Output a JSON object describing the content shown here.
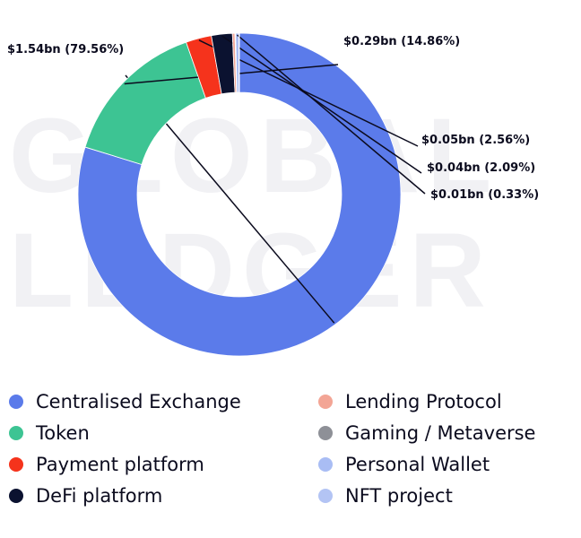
{
  "watermark": {
    "line1": "GLOBAL",
    "line2": "LEDGER"
  },
  "chart_data": {
    "type": "pie",
    "donut": true,
    "title": "",
    "series": [
      {
        "name": "Centralised Exchange",
        "value": 1.54,
        "percent": 79.56,
        "label": "$1.54bn (79.56%)",
        "color": "#5b7bea"
      },
      {
        "name": "Token",
        "value": 0.29,
        "percent": 14.86,
        "label": "$0.29bn (14.86%)",
        "color": "#3dc493"
      },
      {
        "name": "Payment platform",
        "value": 0.05,
        "percent": 2.56,
        "label": "$0.05bn (2.56%)",
        "color": "#f5331c"
      },
      {
        "name": "DeFi platform",
        "value": 0.04,
        "percent": 2.09,
        "label": "$0.04bn (2.09%)",
        "color": "#0b1230"
      },
      {
        "name": "Lending Protocol",
        "value": 0.004,
        "percent": 0.25,
        "label": "",
        "color": "#f3a595"
      },
      {
        "name": "Gaming / Metaverse",
        "value": 0.001,
        "percent": 0.06,
        "label": "",
        "color": "#8e9097"
      },
      {
        "name": "Personal Wallet",
        "value": 0.01,
        "percent": 0.33,
        "label": "$0.01bn (0.33%)",
        "color": "#a9bdf4"
      },
      {
        "name": "NFT project",
        "value": 0.001,
        "percent": 0.05,
        "label": "",
        "color": "#b3c4f4"
      }
    ],
    "legend_position": "bottom",
    "legend_order": [
      "Centralised Exchange",
      "Lending Protocol",
      "Token",
      "Gaming / Metaverse",
      "Payment platform",
      "Personal Wallet",
      "DeFi platform",
      "NFT project"
    ]
  }
}
